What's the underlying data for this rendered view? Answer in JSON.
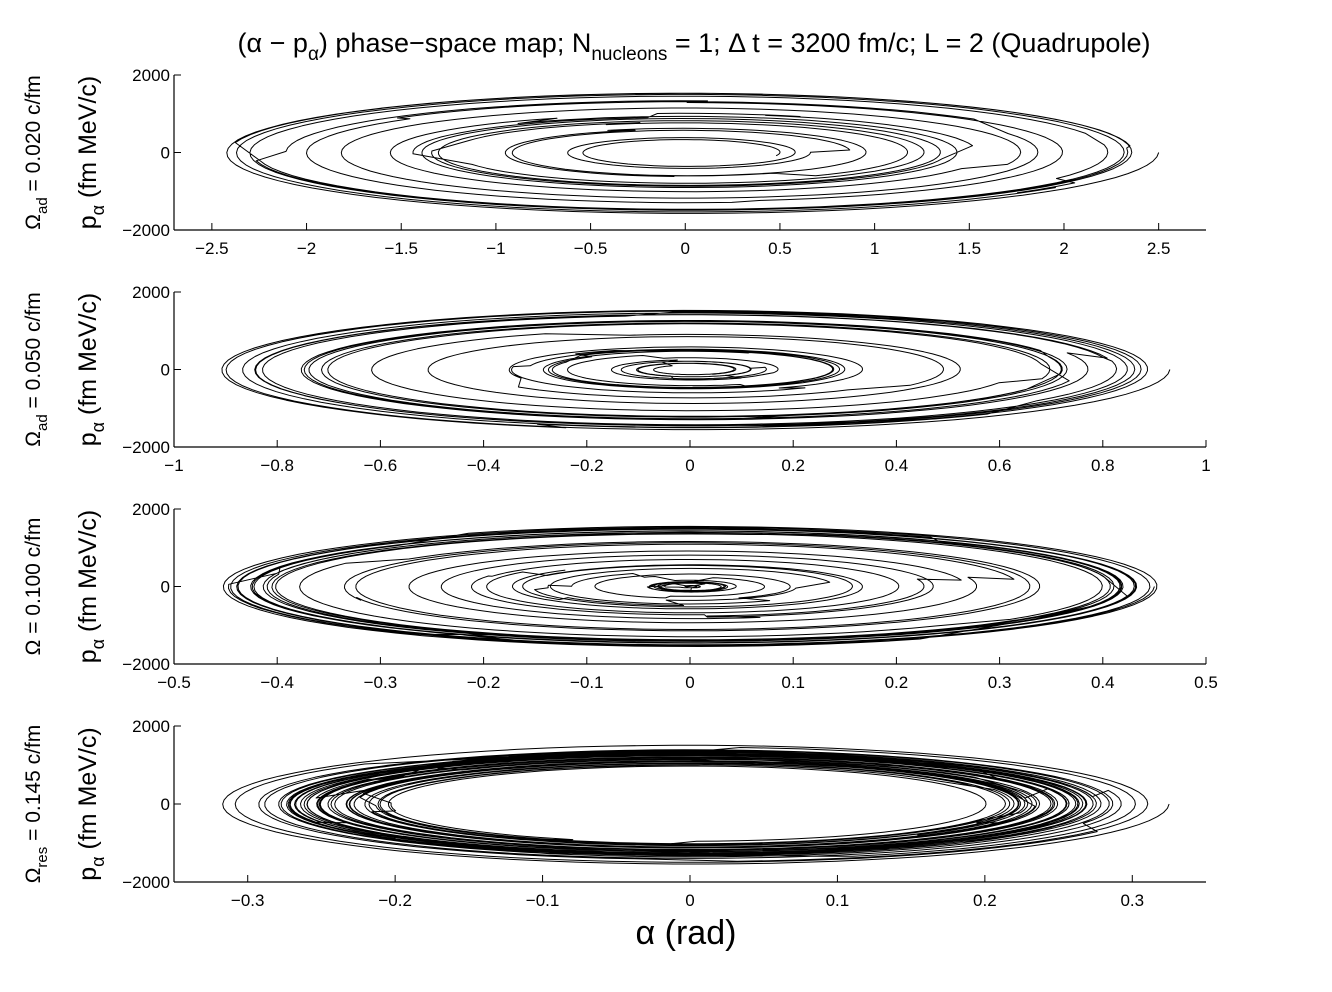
{
  "title": {
    "pre": "(α − p",
    "sub1": "α",
    "mid": ") phase−space map; N",
    "sub2": "nucleons",
    "post": " = 1; Δ t = 3200 fm/c; L = 2 (Quadrupole)"
  },
  "xlabel": "α (rad)",
  "ylabel": {
    "main": "p",
    "sub": "α",
    "rest": " (fm MeV/c)"
  },
  "colors": {
    "line": "#000000",
    "axis": "#000000",
    "background": "#ffffff"
  },
  "chart_data": [
    {
      "type": "line",
      "panel_label": {
        "main": "Ω",
        "sub": "ad",
        "rest": " = 0.020 c/fm"
      },
      "xlim": [
        -2.7,
        2.75
      ],
      "ylim": [
        -2000,
        2000
      ],
      "xticks": [
        -2.5,
        -2,
        -1.5,
        -1,
        -0.5,
        0,
        0.5,
        1,
        1.5,
        2,
        2.5
      ],
      "xtick_labels": [
        "−2.5",
        "−2",
        "−1.5",
        "−1",
        "−0.5",
        "0",
        "0.5",
        "1",
        "1.5",
        "2",
        "2.5"
      ],
      "yticks": [
        -2000,
        0,
        2000
      ],
      "ytick_labels": [
        "−2000",
        "0",
        "2000"
      ],
      "trajectory": {
        "amp_start": 2.5,
        "amp_end": 1.0,
        "pmax_ratio": 640,
        "turns": 16,
        "jumps": 22
      }
    },
    {
      "type": "line",
      "panel_label": {
        "main": "Ω",
        "sub": "ad",
        "rest": " = 0.050 c/fm"
      },
      "xlim": [
        -1,
        1
      ],
      "ylim": [
        -2000,
        2000
      ],
      "xticks": [
        -1,
        -0.8,
        -0.6,
        -0.4,
        -0.2,
        0,
        0.2,
        0.4,
        0.6,
        0.8,
        1
      ],
      "xtick_labels": [
        "−1",
        "−0.8",
        "−0.6",
        "−0.4",
        "−0.2",
        "0",
        "0.2",
        "0.4",
        "0.6",
        "0.8",
        "1"
      ],
      "yticks": [
        -2000,
        0,
        2000
      ],
      "ytick_labels": [
        "−2000",
        "0",
        "2000"
      ],
      "trajectory": {
        "amp_start": 0.93,
        "amp_end": 0.1,
        "pmax_ratio": 1700,
        "turns": 24,
        "jumps": 30
      }
    },
    {
      "type": "line",
      "panel_label": {
        "main": "Ω",
        "sub": "",
        "rest": " = 0.100 c/fm"
      },
      "xlim": [
        -0.5,
        0.5
      ],
      "ylim": [
        -2000,
        2000
      ],
      "xticks": [
        -0.5,
        -0.4,
        -0.3,
        -0.2,
        -0.1,
        0,
        0.1,
        0.2,
        0.3,
        0.4,
        0.5
      ],
      "xtick_labels": [
        "−0.5",
        "−0.4",
        "−0.3",
        "−0.2",
        "−0.1",
        "0",
        "0.1",
        "0.2",
        "0.3",
        "0.4",
        "0.5"
      ],
      "yticks": [
        -2000,
        0,
        2000
      ],
      "ytick_labels": [
        "−2000",
        "0",
        "2000"
      ],
      "trajectory": {
        "amp_start": 0.45,
        "amp_end": 0.08,
        "pmax_ratio": 3400,
        "turns": 32,
        "jumps": 38
      }
    },
    {
      "type": "line",
      "panel_label": {
        "main": "Ω",
        "sub": "res",
        "rest": " = 0.145 c/fm"
      },
      "xlim": [
        -0.35,
        0.35
      ],
      "ylim": [
        -2000,
        2000
      ],
      "xticks": [
        -0.3,
        -0.2,
        -0.1,
        0,
        0.1,
        0.2,
        0.3
      ],
      "xtick_labels": [
        "−0.3",
        "−0.2",
        "−0.1",
        "0",
        "0.1",
        "0.2",
        "0.3"
      ],
      "yticks": [
        -2000,
        0,
        2000
      ],
      "ytick_labels": [
        "−2000",
        "0",
        "2000"
      ],
      "trajectory": {
        "amp_start": 0.325,
        "amp_end": 0.02,
        "pmax_ratio": 4800,
        "turns": 36,
        "jumps": 40
      }
    }
  ]
}
